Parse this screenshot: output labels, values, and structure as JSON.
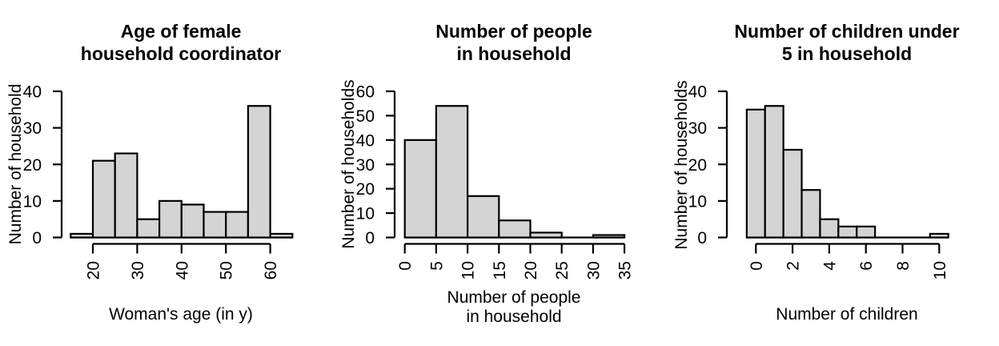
{
  "figure": {
    "background": "#ffffff",
    "bar_fill": "#d4d4d4",
    "bar_stroke": "#000000",
    "axis_color": "#000000",
    "text_color": "#000000"
  },
  "chart_data": [
    {
      "type": "bar",
      "subtype": "histogram",
      "title_lines": [
        "Age of female",
        "household coordinator"
      ],
      "xlabel_lines": [
        "Woman's age (in y)"
      ],
      "ylabel": "Number of household",
      "bin_start": 15,
      "bin_width": 5,
      "counts": [
        1,
        21,
        23,
        5,
        10,
        9,
        7,
        7,
        36,
        1
      ],
      "categories": [
        "15-20",
        "20-25",
        "25-30",
        "30-35",
        "35-40",
        "40-45",
        "45-50",
        "50-55",
        "55-60",
        "60-65"
      ],
      "xticks": [
        20,
        30,
        40,
        50,
        60
      ],
      "yticks": [
        0,
        10,
        20,
        30,
        40
      ],
      "xlim": [
        15,
        65
      ],
      "ylim": [
        0,
        40
      ],
      "grid": "off",
      "legend": "none"
    },
    {
      "type": "bar",
      "subtype": "histogram",
      "title_lines": [
        "Number of people",
        "in household"
      ],
      "xlabel_lines": [
        "Number of people",
        "in household"
      ],
      "ylabel": "Number of households",
      "bin_start": 0,
      "bin_width": 5,
      "counts": [
        40,
        54,
        17,
        7,
        2,
        0,
        1
      ],
      "categories": [
        "0-5",
        "5-10",
        "10-15",
        "15-20",
        "20-25",
        "25-30",
        "30-35"
      ],
      "xticks": [
        0,
        5,
        10,
        15,
        20,
        25,
        30,
        35
      ],
      "yticks": [
        0,
        10,
        20,
        30,
        40,
        50,
        60
      ],
      "xlim": [
        0,
        35
      ],
      "ylim": [
        0,
        60
      ],
      "grid": "off",
      "legend": "none"
    },
    {
      "type": "bar",
      "subtype": "histogram",
      "title_lines": [
        "Number of children under",
        "5 in household"
      ],
      "xlabel_lines": [
        "Number of children"
      ],
      "ylabel": "Number of households",
      "bin_start": -0.5,
      "bin_width": 1,
      "counts": [
        35,
        36,
        24,
        13,
        5,
        3,
        3,
        0,
        0,
        0,
        1
      ],
      "categories": [
        "0",
        "1",
        "2",
        "3",
        "4",
        "5",
        "6",
        "7",
        "8",
        "9",
        "10"
      ],
      "xticks": [
        0,
        2,
        4,
        6,
        8,
        10
      ],
      "yticks": [
        0,
        10,
        20,
        30,
        40
      ],
      "xlim": [
        -0.5,
        10.5
      ],
      "ylim": [
        0,
        40
      ],
      "grid": "off",
      "legend": "none"
    }
  ]
}
